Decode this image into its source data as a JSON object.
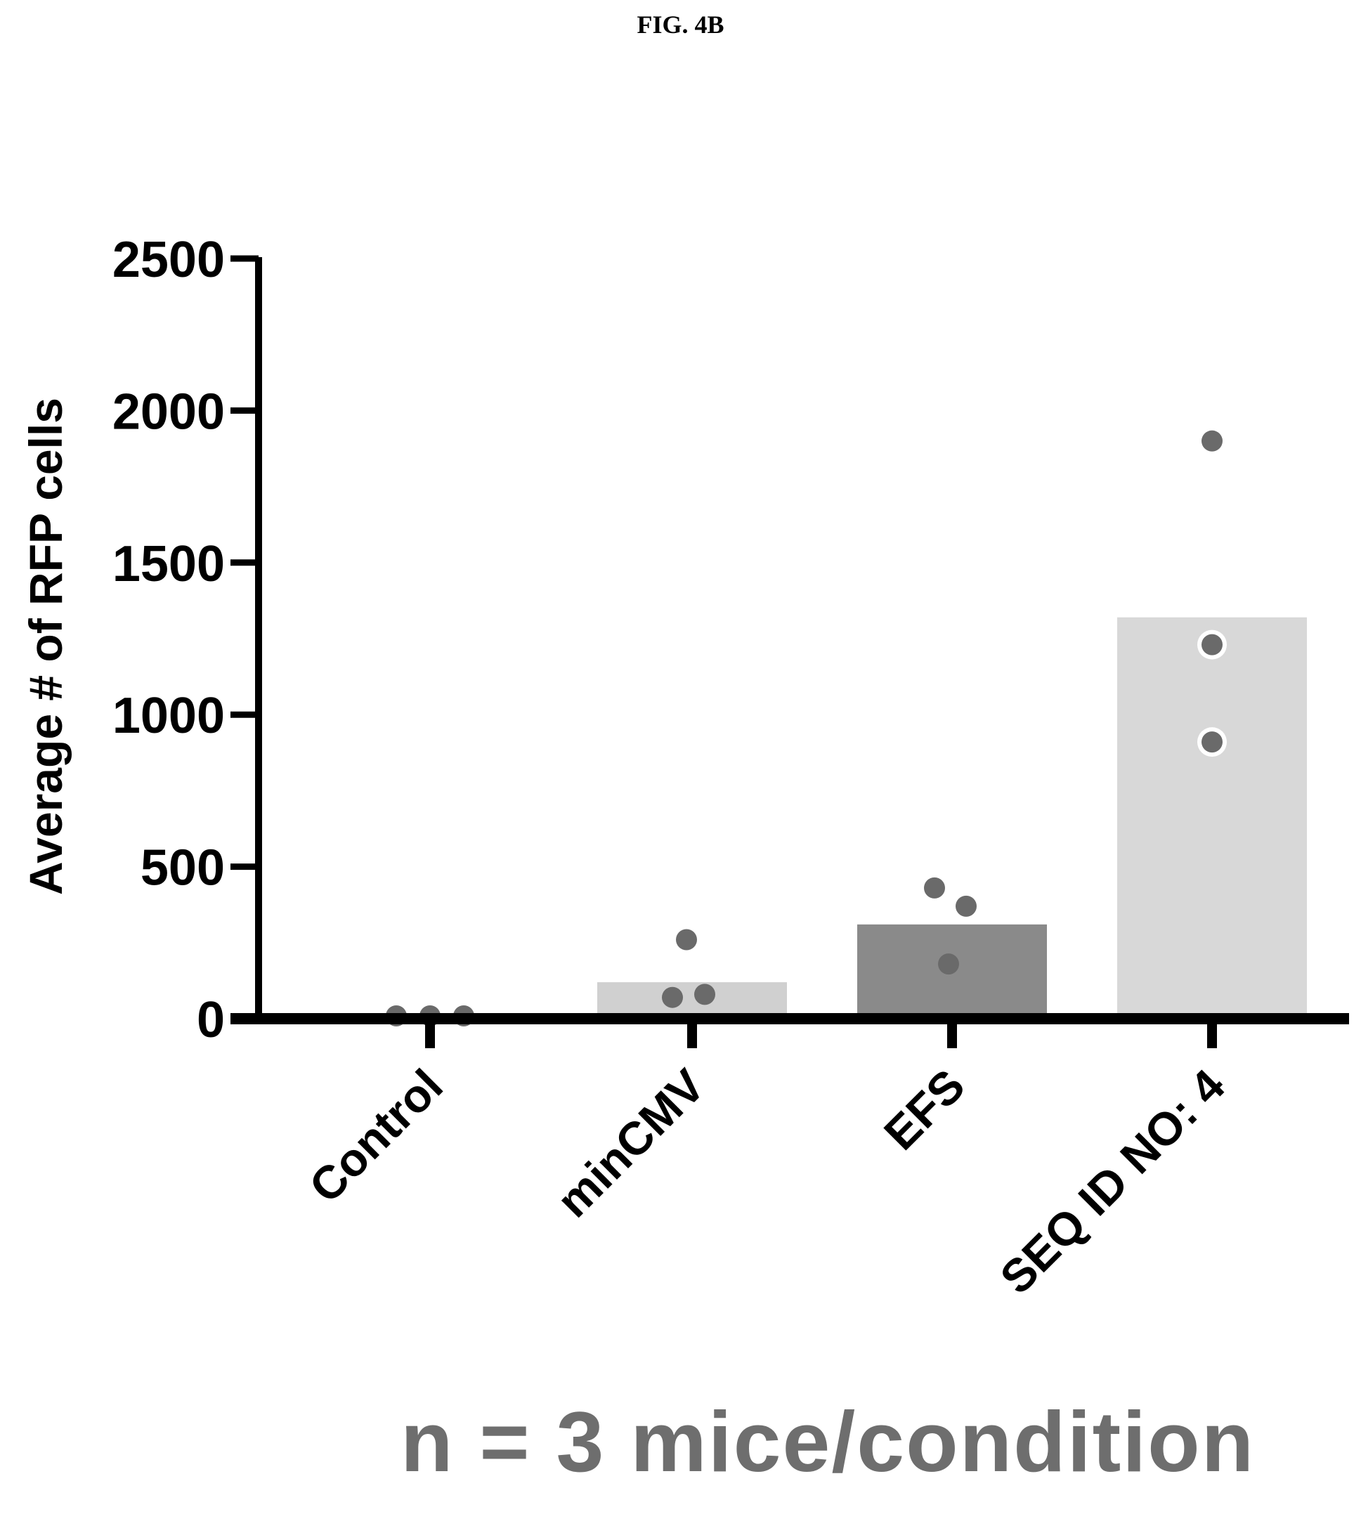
{
  "figure": {
    "title": "FIG. 4B",
    "footnote": "n = 3 mice/condition"
  },
  "chart_data": {
    "type": "bar",
    "ylabel": "Average # of RFP cells",
    "xlabel": "",
    "ylim": [
      0,
      2500
    ],
    "yticks": [
      0,
      500,
      1000,
      1500,
      2000,
      2500
    ],
    "categories": [
      "Control",
      "minCMV",
      "EFS",
      "SEQ ID NO: 4"
    ],
    "values": [
      0,
      120,
      310,
      1320
    ],
    "points": [
      [
        5,
        5,
        5
      ],
      [
        260,
        70,
        80
      ],
      [
        430,
        370,
        180
      ],
      [
        1900,
        1230,
        910
      ]
    ],
    "bar_colors": [
      "#d6d6d6",
      "#d0d0d0",
      "#8a8a8a",
      "#d8d8d8"
    ],
    "point_color": "#6a6a6a",
    "grid": false,
    "legend": "none"
  }
}
